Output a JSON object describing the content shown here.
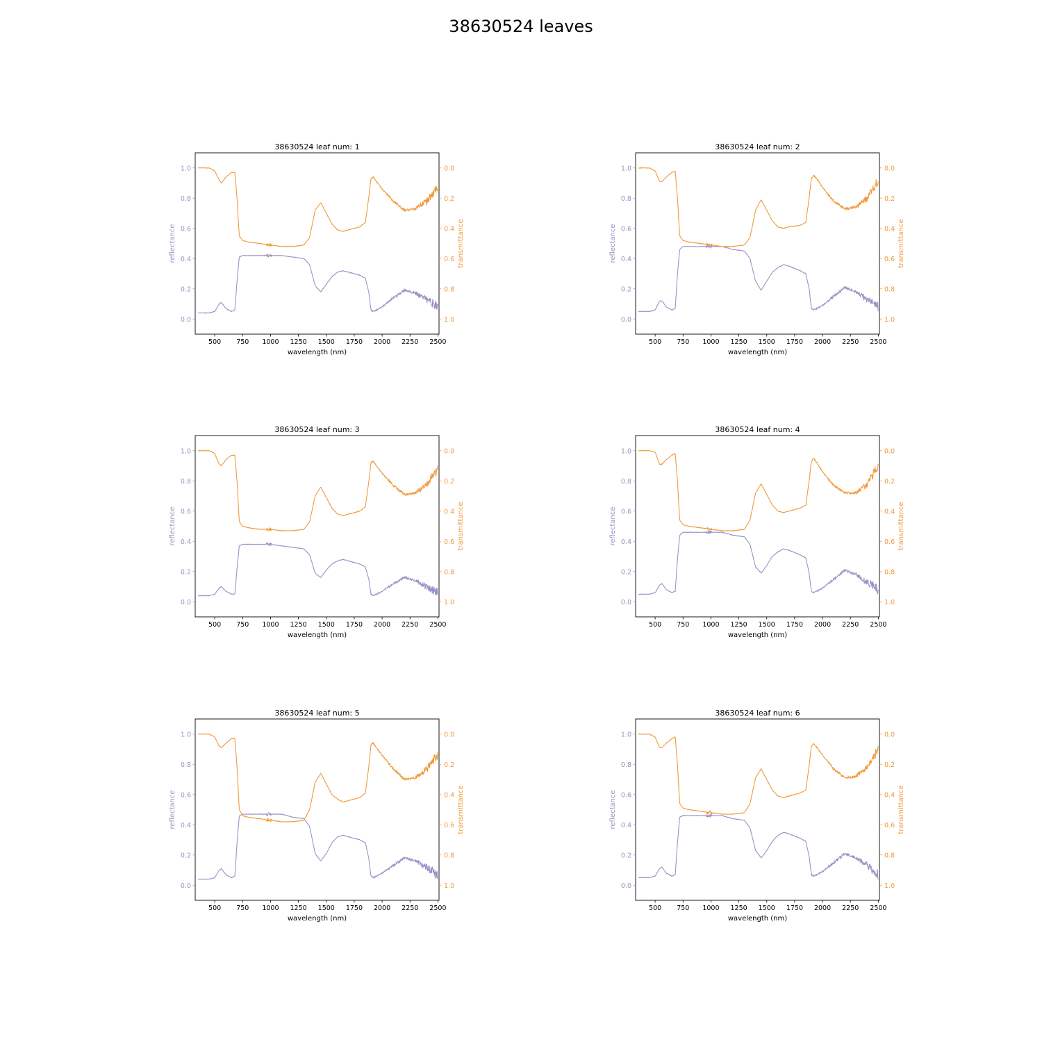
{
  "title": "38630524 leaves",
  "colors": {
    "reflectance": "#9a92c6",
    "transmittance": "#f09a3c",
    "axis": "#000000"
  },
  "shared_axes": {
    "xlabel": "wavelength (nm)",
    "ylabel_left": "reflectance",
    "ylabel_right": "transmittance",
    "xlim": [
      325,
      2510
    ],
    "ylim_left": [
      -0.1,
      1.1
    ],
    "ylim_right": [
      1.1,
      -0.1
    ],
    "xticks": [
      500,
      750,
      1000,
      1250,
      1500,
      1750,
      2000,
      2250,
      2500
    ],
    "xtick_labels": [
      "500",
      "750",
      "1000",
      "1250",
      "1500",
      "1750",
      "2000",
      "2250",
      "2500"
    ],
    "yticks_left": [
      0.0,
      0.2,
      0.4,
      0.6,
      0.8,
      1.0
    ],
    "ytick_labels_left": [
      "0.0",
      "0.2",
      "0.4",
      "0.6",
      "0.8",
      "1.0"
    ],
    "yticks_right": [
      0.0,
      0.2,
      0.4,
      0.6,
      0.8,
      1.0
    ],
    "ytick_labels_right": [
      "0.0",
      "0.2",
      "0.4",
      "0.6",
      "0.8",
      "1.0"
    ],
    "right_axis_inverted": true,
    "grid": false
  },
  "chart_data": [
    {
      "type": "line",
      "title": "38630524 leaf num: 1",
      "x": [
        350,
        450,
        500,
        540,
        560,
        600,
        650,
        680,
        700,
        720,
        750,
        800,
        900,
        1000,
        1100,
        1200,
        1300,
        1350,
        1400,
        1450,
        1500,
        1550,
        1600,
        1650,
        1700,
        1800,
        1850,
        1880,
        1900,
        1920,
        1950,
        2000,
        2100,
        2200,
        2300,
        2400,
        2500
      ],
      "series": [
        {
          "name": "reflectance",
          "axis": "left",
          "values": [
            0.04,
            0.04,
            0.05,
            0.1,
            0.11,
            0.07,
            0.05,
            0.06,
            0.25,
            0.41,
            0.42,
            0.42,
            0.42,
            0.42,
            0.42,
            0.41,
            0.4,
            0.36,
            0.22,
            0.18,
            0.23,
            0.28,
            0.31,
            0.32,
            0.31,
            0.29,
            0.27,
            0.18,
            0.06,
            0.05,
            0.06,
            0.08,
            0.14,
            0.19,
            0.17,
            0.13,
            0.08
          ]
        },
        {
          "name": "transmittance",
          "axis": "right",
          "values": [
            0.0,
            0.0,
            0.02,
            0.08,
            0.1,
            0.06,
            0.03,
            0.03,
            0.2,
            0.45,
            0.48,
            0.49,
            0.5,
            0.51,
            0.52,
            0.52,
            0.51,
            0.46,
            0.28,
            0.23,
            0.3,
            0.37,
            0.41,
            0.42,
            0.41,
            0.39,
            0.36,
            0.2,
            0.07,
            0.06,
            0.09,
            0.14,
            0.22,
            0.28,
            0.27,
            0.22,
            0.13
          ]
        }
      ]
    },
    {
      "type": "line",
      "title": "38630524 leaf num: 2",
      "x": [
        350,
        450,
        500,
        540,
        560,
        600,
        650,
        680,
        700,
        720,
        750,
        800,
        900,
        1000,
        1100,
        1200,
        1300,
        1350,
        1400,
        1450,
        1500,
        1550,
        1600,
        1650,
        1700,
        1800,
        1850,
        1880,
        1900,
        1920,
        1950,
        2000,
        2100,
        2200,
        2300,
        2400,
        2500
      ],
      "series": [
        {
          "name": "reflectance",
          "axis": "left",
          "values": [
            0.05,
            0.05,
            0.06,
            0.12,
            0.12,
            0.08,
            0.06,
            0.07,
            0.3,
            0.46,
            0.48,
            0.48,
            0.48,
            0.48,
            0.48,
            0.46,
            0.45,
            0.4,
            0.25,
            0.19,
            0.25,
            0.31,
            0.34,
            0.36,
            0.35,
            0.32,
            0.3,
            0.2,
            0.07,
            0.06,
            0.07,
            0.09,
            0.15,
            0.21,
            0.18,
            0.13,
            0.08
          ]
        },
        {
          "name": "transmittance",
          "axis": "right",
          "values": [
            0.0,
            0.0,
            0.02,
            0.09,
            0.09,
            0.06,
            0.03,
            0.02,
            0.2,
            0.45,
            0.48,
            0.49,
            0.5,
            0.51,
            0.52,
            0.52,
            0.51,
            0.46,
            0.28,
            0.21,
            0.28,
            0.35,
            0.39,
            0.4,
            0.39,
            0.38,
            0.36,
            0.2,
            0.07,
            0.05,
            0.07,
            0.13,
            0.22,
            0.27,
            0.26,
            0.2,
            0.08
          ]
        }
      ]
    },
    {
      "type": "line",
      "title": "38630524 leaf num: 3",
      "x": [
        350,
        450,
        500,
        540,
        560,
        600,
        650,
        680,
        700,
        720,
        750,
        800,
        900,
        1000,
        1100,
        1200,
        1300,
        1350,
        1400,
        1450,
        1500,
        1550,
        1600,
        1650,
        1700,
        1800,
        1850,
        1880,
        1900,
        1920,
        1950,
        2000,
        2100,
        2200,
        2300,
        2400,
        2500
      ],
      "series": [
        {
          "name": "reflectance",
          "axis": "left",
          "values": [
            0.04,
            0.04,
            0.05,
            0.09,
            0.1,
            0.07,
            0.05,
            0.05,
            0.22,
            0.37,
            0.38,
            0.38,
            0.38,
            0.38,
            0.37,
            0.36,
            0.35,
            0.31,
            0.19,
            0.16,
            0.21,
            0.25,
            0.27,
            0.28,
            0.27,
            0.25,
            0.23,
            0.15,
            0.05,
            0.04,
            0.05,
            0.07,
            0.12,
            0.16,
            0.14,
            0.1,
            0.06
          ]
        },
        {
          "name": "transmittance",
          "axis": "right",
          "values": [
            0.0,
            0.0,
            0.02,
            0.09,
            0.1,
            0.06,
            0.03,
            0.03,
            0.2,
            0.47,
            0.5,
            0.51,
            0.52,
            0.52,
            0.53,
            0.53,
            0.52,
            0.47,
            0.3,
            0.24,
            0.31,
            0.38,
            0.42,
            0.43,
            0.42,
            0.4,
            0.37,
            0.21,
            0.08,
            0.07,
            0.1,
            0.15,
            0.23,
            0.29,
            0.28,
            0.22,
            0.12
          ]
        }
      ]
    },
    {
      "type": "line",
      "title": "38630524 leaf num: 4",
      "x": [
        350,
        450,
        500,
        540,
        560,
        600,
        650,
        680,
        700,
        720,
        750,
        800,
        900,
        1000,
        1100,
        1200,
        1300,
        1350,
        1400,
        1450,
        1500,
        1550,
        1600,
        1650,
        1700,
        1800,
        1850,
        1880,
        1900,
        1920,
        1950,
        2000,
        2100,
        2200,
        2300,
        2400,
        2500
      ],
      "series": [
        {
          "name": "reflectance",
          "axis": "left",
          "values": [
            0.05,
            0.05,
            0.06,
            0.11,
            0.12,
            0.08,
            0.06,
            0.07,
            0.28,
            0.44,
            0.46,
            0.46,
            0.46,
            0.46,
            0.46,
            0.44,
            0.43,
            0.38,
            0.23,
            0.19,
            0.24,
            0.3,
            0.33,
            0.35,
            0.34,
            0.31,
            0.29,
            0.19,
            0.07,
            0.06,
            0.07,
            0.09,
            0.15,
            0.21,
            0.18,
            0.13,
            0.08
          ]
        },
        {
          "name": "transmittance",
          "axis": "right",
          "values": [
            0.0,
            0.0,
            0.01,
            0.09,
            0.09,
            0.06,
            0.03,
            0.02,
            0.2,
            0.46,
            0.49,
            0.5,
            0.51,
            0.52,
            0.53,
            0.53,
            0.52,
            0.46,
            0.28,
            0.22,
            0.29,
            0.36,
            0.4,
            0.41,
            0.4,
            0.38,
            0.36,
            0.2,
            0.07,
            0.05,
            0.08,
            0.14,
            0.23,
            0.28,
            0.28,
            0.22,
            0.09
          ]
        }
      ]
    },
    {
      "type": "line",
      "title": "38630524 leaf num: 5",
      "x": [
        350,
        450,
        500,
        540,
        560,
        600,
        650,
        680,
        700,
        720,
        750,
        800,
        900,
        1000,
        1100,
        1200,
        1300,
        1350,
        1400,
        1450,
        1500,
        1550,
        1600,
        1650,
        1700,
        1800,
        1850,
        1880,
        1900,
        1920,
        1950,
        2000,
        2100,
        2200,
        2300,
        2400,
        2500
      ],
      "series": [
        {
          "name": "reflectance",
          "axis": "left",
          "values": [
            0.04,
            0.04,
            0.05,
            0.1,
            0.11,
            0.07,
            0.05,
            0.06,
            0.28,
            0.46,
            0.47,
            0.47,
            0.47,
            0.47,
            0.47,
            0.45,
            0.44,
            0.39,
            0.21,
            0.16,
            0.21,
            0.28,
            0.32,
            0.33,
            0.32,
            0.3,
            0.28,
            0.18,
            0.06,
            0.05,
            0.06,
            0.08,
            0.13,
            0.18,
            0.16,
            0.12,
            0.06
          ]
        },
        {
          "name": "transmittance",
          "axis": "right",
          "values": [
            0.0,
            0.0,
            0.02,
            0.08,
            0.09,
            0.06,
            0.03,
            0.03,
            0.22,
            0.5,
            0.54,
            0.55,
            0.56,
            0.57,
            0.58,
            0.58,
            0.57,
            0.5,
            0.32,
            0.26,
            0.33,
            0.4,
            0.43,
            0.45,
            0.44,
            0.42,
            0.39,
            0.22,
            0.07,
            0.06,
            0.09,
            0.14,
            0.23,
            0.3,
            0.29,
            0.23,
            0.13
          ]
        }
      ]
    },
    {
      "type": "line",
      "title": "38630524 leaf num: 6",
      "x": [
        350,
        450,
        500,
        540,
        560,
        600,
        650,
        680,
        700,
        720,
        750,
        800,
        900,
        1000,
        1100,
        1200,
        1300,
        1350,
        1400,
        1450,
        1500,
        1550,
        1600,
        1650,
        1700,
        1800,
        1850,
        1880,
        1900,
        1920,
        1950,
        2000,
        2100,
        2200,
        2300,
        2400,
        2500
      ],
      "series": [
        {
          "name": "reflectance",
          "axis": "left",
          "values": [
            0.05,
            0.05,
            0.06,
            0.11,
            0.12,
            0.08,
            0.06,
            0.07,
            0.28,
            0.45,
            0.46,
            0.46,
            0.46,
            0.46,
            0.46,
            0.44,
            0.43,
            0.38,
            0.23,
            0.18,
            0.23,
            0.29,
            0.33,
            0.35,
            0.34,
            0.31,
            0.29,
            0.19,
            0.07,
            0.06,
            0.07,
            0.09,
            0.15,
            0.21,
            0.18,
            0.13,
            0.07
          ]
        },
        {
          "name": "transmittance",
          "axis": "right",
          "values": [
            0.0,
            0.0,
            0.02,
            0.09,
            0.09,
            0.06,
            0.03,
            0.02,
            0.2,
            0.46,
            0.49,
            0.5,
            0.51,
            0.52,
            0.53,
            0.53,
            0.52,
            0.46,
            0.29,
            0.23,
            0.3,
            0.37,
            0.41,
            0.42,
            0.41,
            0.39,
            0.37,
            0.21,
            0.08,
            0.06,
            0.09,
            0.14,
            0.23,
            0.29,
            0.28,
            0.22,
            0.1
          ]
        }
      ]
    }
  ]
}
